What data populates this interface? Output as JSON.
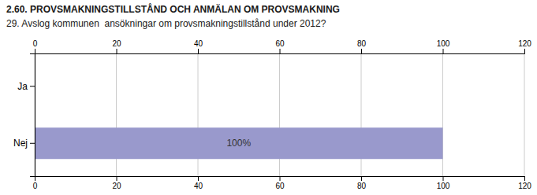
{
  "chart_data": {
    "type": "bar",
    "orientation": "horizontal",
    "title": "2.60. PROVSMAKNINGSTILLSTÅND OCH ANMÄLAN OM PROVSMAKNING",
    "subtitle": "29. Avslog kommunen  ansökningar om provsmakningstillstånd under 2012?",
    "categories": [
      "Ja",
      "Nej"
    ],
    "values": [
      0,
      100
    ],
    "value_labels": [
      null,
      "100%"
    ],
    "data_labels": true,
    "color": "#9999cc",
    "xlim": [
      0,
      120
    ],
    "xticks": [
      0,
      20,
      40,
      60,
      80,
      100,
      120
    ],
    "grid": true
  }
}
